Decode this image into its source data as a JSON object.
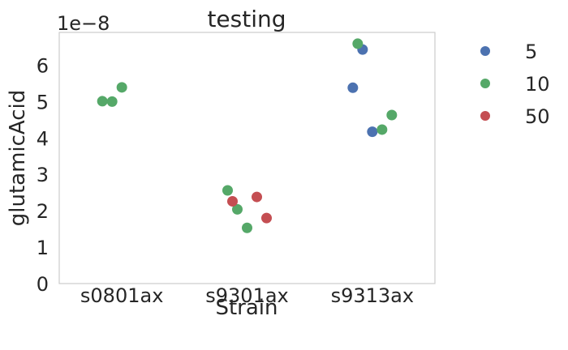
{
  "chart_data": {
    "type": "scatter",
    "title": "testing",
    "xlabel": "Strain",
    "ylabel": "glutamicAcid",
    "offset_label": "1e−8",
    "categories": [
      "s0801ax",
      "s9301ax",
      "s9313ax"
    ],
    "ylim": [
      0,
      6.9
    ],
    "y_ticks": [
      0,
      1,
      2,
      3,
      4,
      5,
      6
    ],
    "y_tick_labels": [
      "0",
      "1",
      "2",
      "3",
      "4",
      "5",
      "6"
    ],
    "grid": false,
    "legend_position": "outside-right",
    "series": [
      {
        "name": "5",
        "color": "#4c72b0",
        "points": [
          {
            "category": "s9313ax",
            "y": 5.38
          },
          {
            "category": "s9313ax",
            "y": 6.43
          },
          {
            "category": "s9313ax",
            "y": 4.17
          }
        ]
      },
      {
        "name": "10",
        "color": "#55a868",
        "points": [
          {
            "category": "s0801ax",
            "y": 5.01
          },
          {
            "category": "s0801ax",
            "y": 5.0
          },
          {
            "category": "s0801ax",
            "y": 5.39
          },
          {
            "category": "s9301ax",
            "y": 2.56
          },
          {
            "category": "s9301ax",
            "y": 2.04
          },
          {
            "category": "s9301ax",
            "y": 1.53
          },
          {
            "category": "s9313ax",
            "y": 4.23
          },
          {
            "category": "s9313ax",
            "y": 4.63
          },
          {
            "category": "s9313ax",
            "y": 6.59
          }
        ]
      },
      {
        "name": "50",
        "color": "#c44e52",
        "points": [
          {
            "category": "s9301ax",
            "y": 2.38
          },
          {
            "category": "s9301ax",
            "y": 1.8
          },
          {
            "category": "s9301ax",
            "y": 2.26
          }
        ]
      }
    ]
  }
}
